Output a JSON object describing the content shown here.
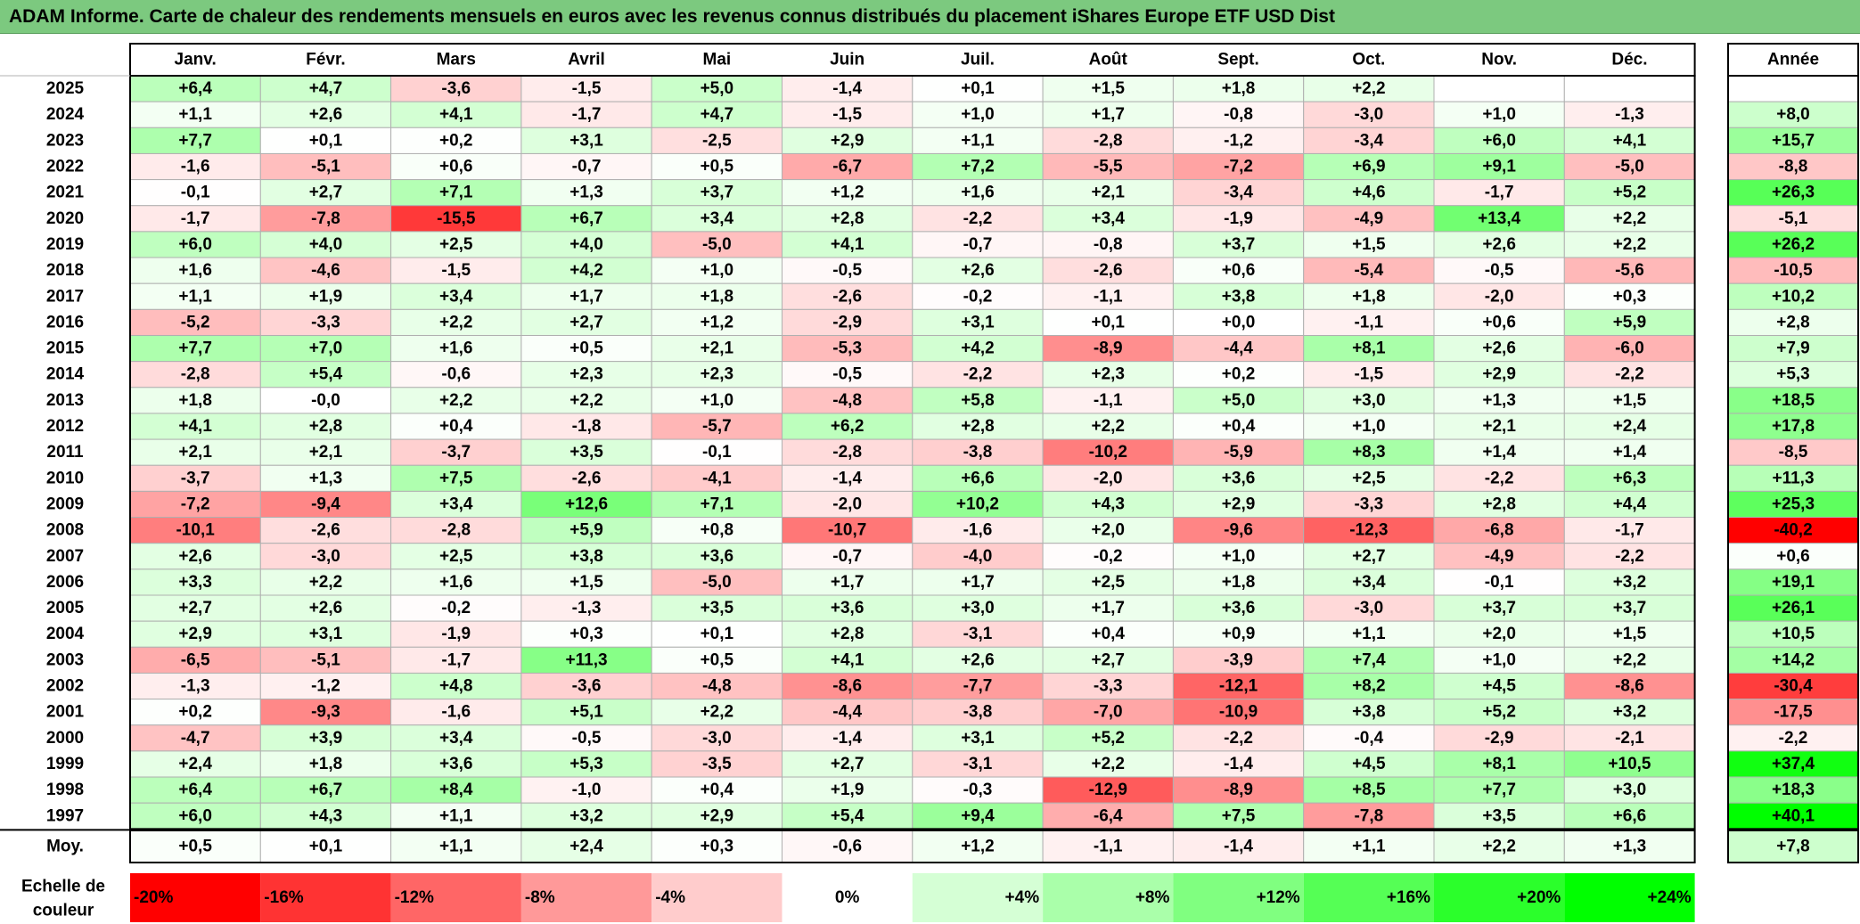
{
  "title": "ADAM Informe. Carte de chaleur des rendements mensuels en euros avec les revenus connus distribués du placement iShares Europe ETF USD Dist",
  "chart_data": {
    "type": "heatmap",
    "columns": [
      "Janv.",
      "Févr.",
      "Mars",
      "Avril",
      "Mai",
      "Juin",
      "Juil.",
      "Août",
      "Sept.",
      "Oct.",
      "Nov.",
      "Déc."
    ],
    "annual_header": "Année",
    "rows": [
      {
        "year": "2025",
        "values": [
          "+6,4",
          "+4,7",
          "-3,6",
          "-1,5",
          "+5,0",
          "-1,4",
          "+0,1",
          "+1,5",
          "+1,8",
          "+2,2",
          "",
          ""
        ],
        "annual": ""
      },
      {
        "year": "2024",
        "values": [
          "+1,1",
          "+2,6",
          "+4,1",
          "-1,7",
          "+4,7",
          "-1,5",
          "+1,0",
          "+1,7",
          "-0,8",
          "-3,0",
          "+1,0",
          "-1,3"
        ],
        "annual": "+8,0"
      },
      {
        "year": "2023",
        "values": [
          "+7,7",
          "+0,1",
          "+0,2",
          "+3,1",
          "-2,5",
          "+2,9",
          "+1,1",
          "-2,8",
          "-1,2",
          "-3,4",
          "+6,0",
          "+4,1"
        ],
        "annual": "+15,7"
      },
      {
        "year": "2022",
        "values": [
          "-1,6",
          "-5,1",
          "+0,6",
          "-0,7",
          "+0,5",
          "-6,7",
          "+7,2",
          "-5,5",
          "-7,2",
          "+6,9",
          "+9,1",
          "-5,0"
        ],
        "annual": "-8,8"
      },
      {
        "year": "2021",
        "values": [
          "-0,1",
          "+2,7",
          "+7,1",
          "+1,3",
          "+3,7",
          "+1,2",
          "+1,6",
          "+2,1",
          "-3,4",
          "+4,6",
          "-1,7",
          "+5,2"
        ],
        "annual": "+26,3"
      },
      {
        "year": "2020",
        "values": [
          "-1,7",
          "-7,8",
          "-15,5",
          "+6,7",
          "+3,4",
          "+2,8",
          "-2,2",
          "+3,4",
          "-1,9",
          "-4,9",
          "+13,4",
          "+2,2"
        ],
        "annual": "-5,1"
      },
      {
        "year": "2019",
        "values": [
          "+6,0",
          "+4,0",
          "+2,5",
          "+4,0",
          "-5,0",
          "+4,1",
          "-0,7",
          "-0,8",
          "+3,7",
          "+1,5",
          "+2,6",
          "+2,2"
        ],
        "annual": "+26,2"
      },
      {
        "year": "2018",
        "values": [
          "+1,6",
          "-4,6",
          "-1,5",
          "+4,2",
          "+1,0",
          "-0,5",
          "+2,6",
          "-2,6",
          "+0,6",
          "-5,4",
          "-0,5",
          "-5,6"
        ],
        "annual": "-10,5"
      },
      {
        "year": "2017",
        "values": [
          "+1,1",
          "+1,9",
          "+3,4",
          "+1,7",
          "+1,8",
          "-2,6",
          "-0,2",
          "-1,1",
          "+3,8",
          "+1,8",
          "-2,0",
          "+0,3"
        ],
        "annual": "+10,2"
      },
      {
        "year": "2016",
        "values": [
          "-5,2",
          "-3,3",
          "+2,2",
          "+2,7",
          "+1,2",
          "-2,9",
          "+3,1",
          "+0,1",
          "+0,0",
          "-1,1",
          "+0,6",
          "+5,9"
        ],
        "annual": "+2,8"
      },
      {
        "year": "2015",
        "values": [
          "+7,7",
          "+7,0",
          "+1,6",
          "+0,5",
          "+2,1",
          "-5,3",
          "+4,2",
          "-8,9",
          "-4,4",
          "+8,1",
          "+2,6",
          "-6,0"
        ],
        "annual": "+7,9"
      },
      {
        "year": "2014",
        "values": [
          "-2,8",
          "+5,4",
          "-0,6",
          "+2,3",
          "+2,3",
          "-0,5",
          "-2,2",
          "+2,3",
          "+0,2",
          "-1,5",
          "+2,9",
          "-2,2"
        ],
        "annual": "+5,3"
      },
      {
        "year": "2013",
        "values": [
          "+1,8",
          "-0,0",
          "+2,2",
          "+2,2",
          "+1,0",
          "-4,8",
          "+5,8",
          "-1,1",
          "+5,0",
          "+3,0",
          "+1,3",
          "+1,5"
        ],
        "annual": "+18,5"
      },
      {
        "year": "2012",
        "values": [
          "+4,1",
          "+2,8",
          "+0,4",
          "-1,8",
          "-5,7",
          "+6,2",
          "+2,8",
          "+2,2",
          "+0,4",
          "+1,0",
          "+2,1",
          "+2,4"
        ],
        "annual": "+17,8"
      },
      {
        "year": "2011",
        "values": [
          "+2,1",
          "+2,1",
          "-3,7",
          "+3,5",
          "-0,1",
          "-2,8",
          "-3,8",
          "-10,2",
          "-5,9",
          "+8,3",
          "+1,4",
          "+1,4"
        ],
        "annual": "-8,5"
      },
      {
        "year": "2010",
        "values": [
          "-3,7",
          "+1,3",
          "+7,5",
          "-2,6",
          "-4,1",
          "-1,4",
          "+6,6",
          "-2,0",
          "+3,6",
          "+2,5",
          "-2,2",
          "+6,3"
        ],
        "annual": "+11,3"
      },
      {
        "year": "2009",
        "values": [
          "-7,2",
          "-9,4",
          "+3,4",
          "+12,6",
          "+7,1",
          "-2,0",
          "+10,2",
          "+4,3",
          "+2,9",
          "-3,3",
          "+2,8",
          "+4,4"
        ],
        "annual": "+25,3"
      },
      {
        "year": "2008",
        "values": [
          "-10,1",
          "-2,6",
          "-2,8",
          "+5,9",
          "+0,8",
          "-10,7",
          "-1,6",
          "+2,0",
          "-9,6",
          "-12,3",
          "-6,8",
          "-1,7"
        ],
        "annual": "-40,2"
      },
      {
        "year": "2007",
        "values": [
          "+2,6",
          "-3,0",
          "+2,5",
          "+3,8",
          "+3,6",
          "-0,7",
          "-4,0",
          "-0,2",
          "+1,0",
          "+2,7",
          "-4,9",
          "-2,2"
        ],
        "annual": "+0,6"
      },
      {
        "year": "2006",
        "values": [
          "+3,3",
          "+2,2",
          "+1,6",
          "+1,5",
          "-5,0",
          "+1,7",
          "+1,7",
          "+2,5",
          "+1,8",
          "+3,4",
          "-0,1",
          "+3,2"
        ],
        "annual": "+19,1"
      },
      {
        "year": "2005",
        "values": [
          "+2,7",
          "+2,6",
          "-0,2",
          "-1,3",
          "+3,5",
          "+3,6",
          "+3,0",
          "+1,7",
          "+3,6",
          "-3,0",
          "+3,7",
          "+3,7"
        ],
        "annual": "+26,1"
      },
      {
        "year": "2004",
        "values": [
          "+2,9",
          "+3,1",
          "-1,9",
          "+0,3",
          "+0,1",
          "+2,8",
          "-3,1",
          "+0,4",
          "+0,9",
          "+1,1",
          "+2,0",
          "+1,5"
        ],
        "annual": "+10,5"
      },
      {
        "year": "2003",
        "values": [
          "-6,5",
          "-5,1",
          "-1,7",
          "+11,3",
          "+0,5",
          "+4,1",
          "+2,6",
          "+2,7",
          "-3,9",
          "+7,4",
          "+1,0",
          "+2,2"
        ],
        "annual": "+14,2"
      },
      {
        "year": "2002",
        "values": [
          "-1,3",
          "-1,2",
          "+4,8",
          "-3,6",
          "-4,8",
          "-8,6",
          "-7,7",
          "-3,3",
          "-12,1",
          "+8,2",
          "+4,5",
          "-8,6"
        ],
        "annual": "-30,4"
      },
      {
        "year": "2001",
        "values": [
          "+0,2",
          "-9,3",
          "-1,6",
          "+5,1",
          "+2,2",
          "-4,4",
          "-3,8",
          "-7,0",
          "-10,9",
          "+3,8",
          "+5,2",
          "+3,2"
        ],
        "annual": "-17,5"
      },
      {
        "year": "2000",
        "values": [
          "-4,7",
          "+3,9",
          "+3,4",
          "-0,5",
          "-3,0",
          "-1,4",
          "+3,1",
          "+5,2",
          "-2,2",
          "-0,4",
          "-2,9",
          "-2,1"
        ],
        "annual": "-2,2"
      },
      {
        "year": "1999",
        "values": [
          "+2,4",
          "+1,8",
          "+3,6",
          "+5,3",
          "-3,5",
          "+2,7",
          "-3,1",
          "+2,2",
          "-1,4",
          "+4,5",
          "+8,1",
          "+10,5"
        ],
        "annual": "+37,4"
      },
      {
        "year": "1998",
        "values": [
          "+6,4",
          "+6,7",
          "+8,4",
          "-1,0",
          "+0,4",
          "+1,9",
          "-0,3",
          "-12,9",
          "-8,9",
          "+8,5",
          "+7,7",
          "+3,0"
        ],
        "annual": "+18,3"
      },
      {
        "year": "1997",
        "values": [
          "+6,0",
          "+4,3",
          "+1,1",
          "+3,2",
          "+2,9",
          "+5,4",
          "+9,4",
          "-6,4",
          "+7,5",
          "-7,8",
          "+3,5",
          "+6,6"
        ],
        "annual": "+40,1"
      }
    ],
    "average": {
      "label": "Moy.",
      "values": [
        "+0,5",
        "+0,1",
        "+1,1",
        "+2,4",
        "+0,3",
        "-0,6",
        "+1,2",
        "-1,1",
        "-1,4",
        "+1,1",
        "+2,2",
        "+1,3"
      ],
      "annual": "+7,8"
    },
    "color_scale": {
      "label_lines": [
        "Echelle de",
        "couleur"
      ],
      "stops": [
        {
          "label": "-20%",
          "value": -20,
          "color": "#ff0000"
        },
        {
          "label": "-16%",
          "value": -16,
          "color": "#ff3333"
        },
        {
          "label": "-12%",
          "value": -12,
          "color": "#ff6666"
        },
        {
          "label": "-8%",
          "value": -8,
          "color": "#ff9999"
        },
        {
          "label": "-4%",
          "value": -4,
          "color": "#ffcccc"
        },
        {
          "label": "0%",
          "value": 0,
          "color": "#ffffff"
        },
        {
          "label": "+4%",
          "value": 4,
          "color": "#d5ffd5"
        },
        {
          "label": "+8%",
          "value": 8,
          "color": "#aaffaa"
        },
        {
          "label": "+12%",
          "value": 12,
          "color": "#80ff80"
        },
        {
          "label": "+16%",
          "value": 16,
          "color": "#55ff55"
        },
        {
          "label": "+20%",
          "value": 20,
          "color": "#2bff2b"
        },
        {
          "label": "+24%",
          "value": 24,
          "color": "#00ff00"
        }
      ]
    }
  }
}
